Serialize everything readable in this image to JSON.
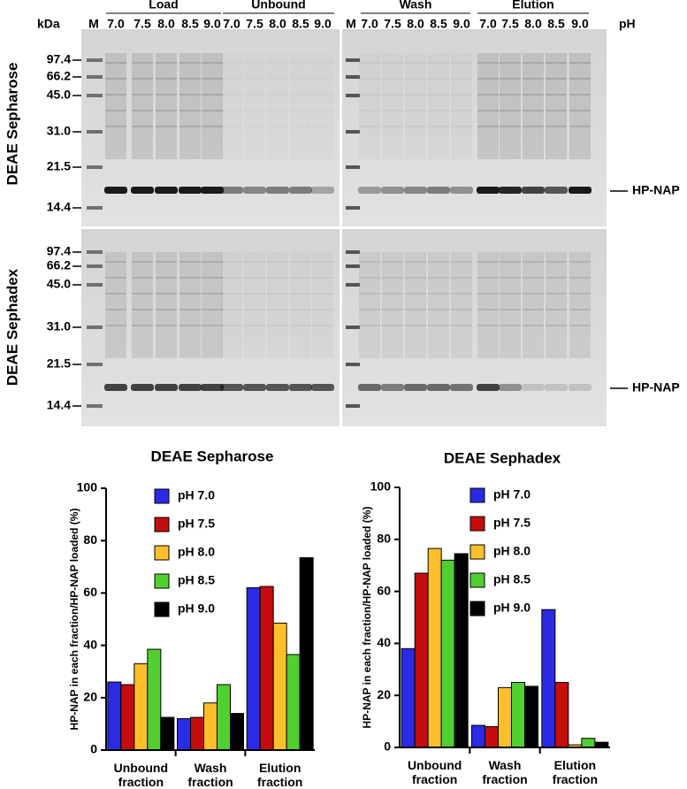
{
  "gel": {
    "kda_label": "kDa",
    "ph_label": "pH",
    "marker_lane": "M",
    "groups": [
      "Load",
      "Unbound",
      "Wash",
      "Elution"
    ],
    "lane_ph": [
      "7.0",
      "7.5",
      "8.0",
      "8.5",
      "9.0"
    ],
    "marker_weights": [
      "97.4",
      "66.2",
      "45.0",
      "31.0",
      "21.5",
      "14.4"
    ],
    "rows": [
      "DEAE Sepharose",
      "DEAE Sephadex"
    ],
    "band_label": "HP-NAP"
  },
  "chart_data": [
    {
      "type": "bar",
      "title": "DEAE Sepharose",
      "ylabel": "HP-NAP in each fraction/HP-NAP loaded (%)",
      "categories": [
        "Unbound fraction",
        "Wash fraction",
        "Elution fraction"
      ],
      "series": [
        {
          "name": "pH 7.0",
          "color": "#2b2be3",
          "values": [
            26,
            12,
            62
          ]
        },
        {
          "name": "pH 7.5",
          "color": "#c40d0d",
          "values": [
            25,
            12.5,
            62.5
          ]
        },
        {
          "name": "pH 8.0",
          "color": "#ffbf2a",
          "values": [
            33,
            18,
            48.5
          ]
        },
        {
          "name": "pH 8.5",
          "color": "#4fcf30",
          "values": [
            38.5,
            25,
            36.5
          ]
        },
        {
          "name": "pH 9.0",
          "color": "#000000",
          "values": [
            12.5,
            14,
            73.5
          ]
        }
      ],
      "ylim": [
        0,
        100
      ],
      "yticks": [
        0,
        20,
        40,
        60,
        80,
        100
      ]
    },
    {
      "type": "bar",
      "title": "DEAE Sephadex",
      "ylabel": "HP-NAP in each fraction/HP-NAP loaded (%)",
      "categories": [
        "Unbound fraction",
        "Wash fraction",
        "Elution fraction"
      ],
      "series": [
        {
          "name": "pH 7.0",
          "color": "#2b2be3",
          "values": [
            38,
            8.5,
            53
          ]
        },
        {
          "name": "pH 7.5",
          "color": "#c40d0d",
          "values": [
            67,
            8,
            25
          ]
        },
        {
          "name": "pH 8.0",
          "color": "#ffbf2a",
          "values": [
            76.5,
            23,
            1
          ]
        },
        {
          "name": "pH 8.5",
          "color": "#4fcf30",
          "values": [
            72,
            25,
            3.5
          ]
        },
        {
          "name": "pH 9.0",
          "color": "#000000",
          "values": [
            74.5,
            23.5,
            2
          ]
        }
      ],
      "ylim": [
        0,
        100
      ],
      "yticks": [
        0,
        20,
        40,
        60,
        80,
        100
      ]
    }
  ]
}
